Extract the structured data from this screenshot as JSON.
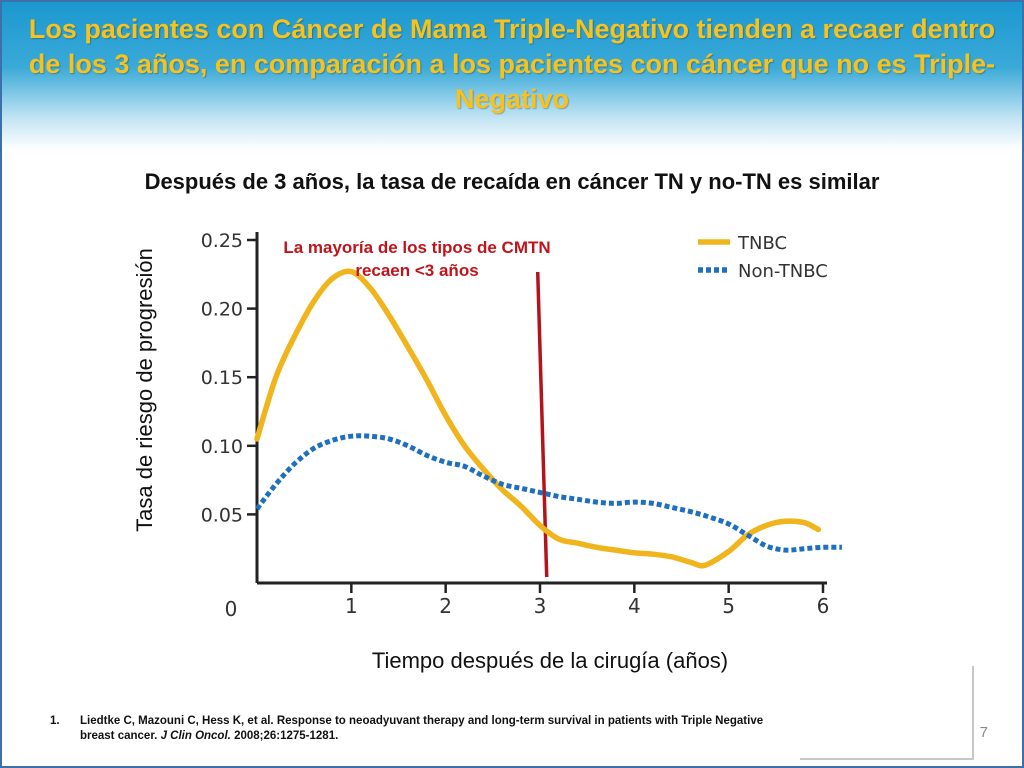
{
  "slide": {
    "title": "Los pacientes con Cáncer de Mama Triple-Negativo tienden a recaer dentro de los 3 años, en comparación a los pacientes con cáncer que no es Triple-Negativo",
    "subtitle": "Después de 3 años, la tasa de recaída en cáncer TN y no-TN es similar",
    "footnote_number": "1.",
    "footnote_text": "Liedtke C, Mazouni C, Hess K, et al. Response to neoadyuvant therapy and long-term survival in patients with Triple Negative breast cancer.",
    "footnote_journal": "J Clin Oncol.",
    "footnote_ref": "2008;26:1275-1281.",
    "slide_number": "7",
    "colors": {
      "title": "#f7c21e",
      "header_blue": "#1a97cf",
      "annotation": "#c0141b",
      "tnbc": "#f0b41c",
      "non_tnbc": "#1f6fc0",
      "marker_line": "#b3141b"
    }
  },
  "chart_data": {
    "type": "line",
    "title": "",
    "xlabel": "Tiempo después de la cirugía (años)",
    "ylabel": "Tasa de riesgo de progresión",
    "xlim": [
      0,
      6
    ],
    "ylim": [
      0,
      0.25
    ],
    "x_ticks": [
      "0",
      "1",
      "2",
      "3",
      "4",
      "5",
      "6"
    ],
    "y_ticks": [
      "0.25",
      "0.20",
      "0.15",
      "0.10",
      "0.05"
    ],
    "y_tick_values": [
      0.25,
      0.2,
      0.15,
      0.1,
      0.05
    ],
    "legend_position": "top-right",
    "annotation": "La mayoría de los tipos de CMTN recaen <3 años",
    "vertical_marker_x": 3.05,
    "series": [
      {
        "name": "TNBC",
        "style": "solid",
        "color": "#f0b41c",
        "x": [
          0.0,
          0.2,
          0.4,
          0.6,
          0.8,
          1.0,
          1.2,
          1.4,
          1.6,
          1.8,
          2.0,
          2.2,
          2.4,
          2.6,
          2.8,
          3.0,
          3.2,
          3.4,
          3.6,
          3.8,
          4.0,
          4.2,
          4.4,
          4.6,
          4.75,
          5.0,
          5.2,
          5.4,
          5.6,
          5.8,
          5.95
        ],
        "values": [
          0.105,
          0.15,
          0.18,
          0.205,
          0.222,
          0.227,
          0.215,
          0.195,
          0.172,
          0.148,
          0.122,
          0.1,
          0.083,
          0.068,
          0.056,
          0.042,
          0.032,
          0.029,
          0.026,
          0.024,
          0.022,
          0.021,
          0.019,
          0.015,
          0.013,
          0.023,
          0.035,
          0.042,
          0.045,
          0.044,
          0.039
        ]
      },
      {
        "name": "Non-TNBC",
        "style": "dotted",
        "color": "#1f6fc0",
        "x": [
          0.0,
          0.2,
          0.4,
          0.6,
          0.8,
          1.0,
          1.2,
          1.4,
          1.6,
          1.8,
          2.0,
          2.2,
          2.4,
          2.6,
          2.8,
          3.0,
          3.2,
          3.4,
          3.6,
          3.8,
          4.0,
          4.2,
          4.4,
          4.6,
          4.8,
          5.0,
          5.2,
          5.4,
          5.6,
          5.8,
          6.0,
          6.2
        ],
        "values": [
          0.054,
          0.072,
          0.087,
          0.098,
          0.104,
          0.107,
          0.107,
          0.105,
          0.1,
          0.093,
          0.088,
          0.085,
          0.078,
          0.072,
          0.069,
          0.066,
          0.063,
          0.061,
          0.059,
          0.058,
          0.059,
          0.058,
          0.055,
          0.052,
          0.048,
          0.043,
          0.035,
          0.027,
          0.024,
          0.025,
          0.026,
          0.026
        ]
      }
    ]
  }
}
